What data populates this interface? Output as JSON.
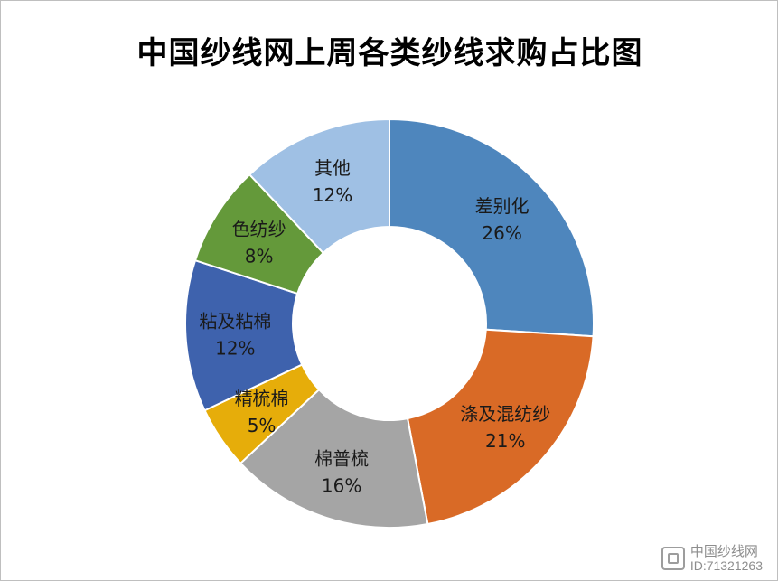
{
  "chart_data": {
    "type": "pie",
    "variant": "donut",
    "title": "中国纱线网上周各类纱线求购占比图",
    "categories": [
      "差别化",
      "涤及混纺纱",
      "棉普梳",
      "精梳棉",
      "粘及粘棉",
      "色纺纱",
      "其他"
    ],
    "values": [
      26,
      21,
      16,
      5,
      12,
      8,
      12
    ],
    "value_labels": [
      "26%",
      "21%",
      "16%",
      "5%",
      "12%",
      "8%",
      "12%"
    ],
    "colors": [
      "#4e86bd",
      "#d96a26",
      "#a5a5a5",
      "#e6ad0a",
      "#3e62ad",
      "#64993a",
      "#9fc0e4"
    ],
    "legend": "none"
  },
  "watermark": {
    "name": "中国纱线网",
    "id": "ID:71321263"
  }
}
